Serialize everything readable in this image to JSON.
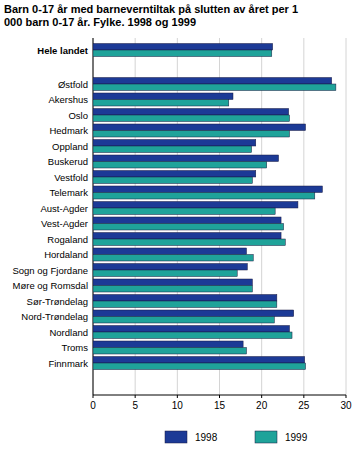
{
  "chart_data": {
    "type": "bar",
    "orientation": "horizontal",
    "title": "Barn 0-17 år med barneverntiltak på slutten av året per 1 000 barn 0-17 år. Fylke. 1998 og 1999",
    "categories": [
      "Hele landet",
      "Østfold",
      "Akershus",
      "Oslo",
      "Hedmark",
      "Oppland",
      "Buskerud",
      "Vestfold",
      "Telemark",
      "Aust-Agder",
      "Vest-Agder",
      "Rogaland",
      "Hordaland",
      "Sogn og Fjordane",
      "Møre og Romsdal",
      "Sør-Trøndelag",
      "Nord-Trøndelag",
      "Nordland",
      "Troms",
      "Finnmark"
    ],
    "series": [
      {
        "name": "1998",
        "color": "#1c3a96",
        "values": [
          21.3,
          28.3,
          16.6,
          23.2,
          25.2,
          19.3,
          22.0,
          19.3,
          27.2,
          24.3,
          22.3,
          22.3,
          18.2,
          18.3,
          18.9,
          21.8,
          23.8,
          23.3,
          17.8,
          25.1
        ]
      },
      {
        "name": "1999",
        "color": "#1fa39a",
        "values": [
          21.2,
          28.8,
          16.1,
          23.3,
          23.3,
          18.8,
          20.6,
          18.9,
          26.3,
          21.6,
          22.6,
          22.8,
          19.0,
          17.1,
          18.9,
          21.8,
          21.5,
          23.6,
          18.2,
          25.2
        ]
      }
    ],
    "xlim": [
      0,
      30
    ],
    "xticks": [
      0,
      5,
      10,
      15,
      20,
      25,
      30
    ],
    "grid": true,
    "legend": "bottom"
  }
}
